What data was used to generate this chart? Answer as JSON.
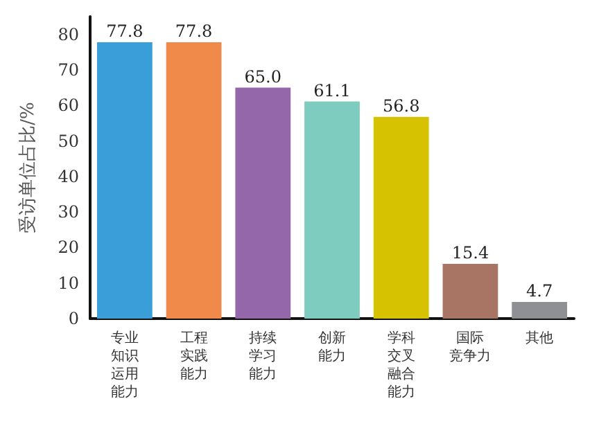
{
  "chart_data": {
    "type": "bar",
    "ylabel": "受访单位占比/%",
    "categories": [
      "专业知识运用能力",
      "工程实践能力",
      "持续学习能力",
      "创新能力",
      "学科交叉融合能力",
      "国际竞争力",
      "其他"
    ],
    "values": [
      77.8,
      77.8,
      65.0,
      61.1,
      56.8,
      15.4,
      4.7
    ],
    "colors": [
      "#3a9fd8",
      "#f08a4b",
      "#9467ab",
      "#7ecbbf",
      "#d6c200",
      "#a87565",
      "#8f9094"
    ],
    "value_labels": [
      "77.8",
      "77.8",
      "65.0",
      "61.1",
      "56.8",
      "15.4",
      "4.7"
    ],
    "ylim": [
      0,
      85
    ],
    "yticks": [
      0,
      10,
      20,
      30,
      40,
      50,
      60,
      70,
      80
    ]
  }
}
